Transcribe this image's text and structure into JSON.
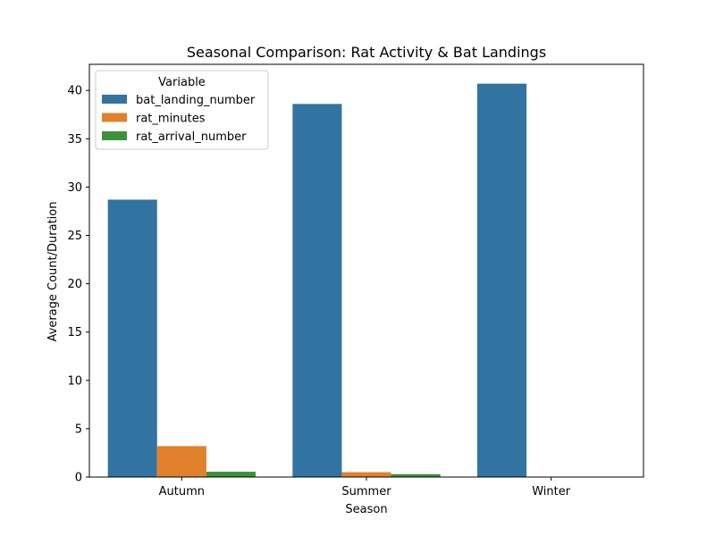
{
  "chart_data": {
    "type": "bar",
    "title": "Seasonal Comparison: Rat Activity & Bat Landings",
    "xlabel": "Season",
    "ylabel": "Average Count/Duration",
    "categories": [
      "Autumn",
      "Summer",
      "Winter"
    ],
    "ylim": [
      0,
      42.7
    ],
    "yticks": [
      0,
      5,
      10,
      15,
      20,
      25,
      30,
      35,
      40
    ],
    "grid": false,
    "legend": {
      "title": "Variable",
      "placement": "upper-left"
    },
    "series": [
      {
        "name": "bat_landing_number",
        "color": "#3274a1",
        "values": [
          28.7,
          38.6,
          40.7
        ]
      },
      {
        "name": "rat_minutes",
        "color": "#e1812c",
        "values": [
          3.2,
          0.5,
          0.0
        ]
      },
      {
        "name": "rat_arrival_number",
        "color": "#3a923a",
        "values": [
          0.55,
          0.3,
          0.0
        ]
      }
    ]
  }
}
